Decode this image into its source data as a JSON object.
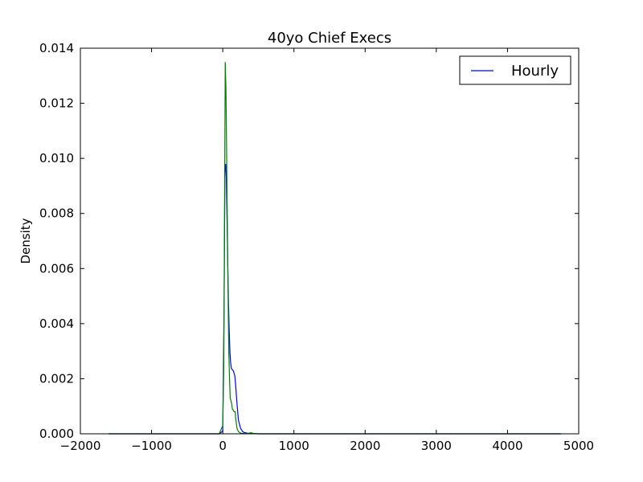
{
  "chart_data": {
    "type": "line",
    "title": "40yo Chief Execs",
    "xlabel": "",
    "ylabel": "Density",
    "xlim": [
      -2000,
      5000
    ],
    "ylim": [
      0,
      0.014
    ],
    "xticks": [
      -2000,
      -1000,
      0,
      1000,
      2000,
      3000,
      4000,
      5000
    ],
    "xtick_labels": [
      "−2000",
      "−1000",
      "0",
      "1000",
      "2000",
      "3000",
      "4000",
      "5000"
    ],
    "yticks": [
      0,
      0.002,
      0.004,
      0.006,
      0.008,
      0.01,
      0.012,
      0.014
    ],
    "ytick_labels": [
      "0.000",
      "0.002",
      "0.004",
      "0.006",
      "0.008",
      "0.010",
      "0.012",
      "0.014"
    ],
    "grid": false,
    "legend": {
      "position": "top-right",
      "entries": [
        {
          "label": "Hourly",
          "color": "#0000ff"
        }
      ]
    },
    "series": [
      {
        "name": "Hourly",
        "color": "#0000ff",
        "x": [
          -1600,
          -200,
          -50,
          0,
          20,
          30,
          40,
          50,
          60,
          70,
          80,
          90,
          100,
          110,
          120,
          130,
          150,
          170,
          180,
          200,
          220,
          250,
          280,
          300,
          350,
          400,
          500,
          1000,
          2000,
          3000,
          4000,
          4750
        ],
        "y": [
          0,
          0,
          0,
          0.0001,
          0.005,
          0.0095,
          0.0098,
          0.0093,
          0.0078,
          0.0062,
          0.0048,
          0.0038,
          0.003,
          0.0026,
          0.00238,
          0.00234,
          0.00228,
          0.0021,
          0.0018,
          0.0011,
          0.0005,
          0.0002,
          8e-05,
          5e-05,
          2e-05,
          1e-05,
          0,
          0,
          0,
          0,
          0,
          0
        ]
      },
      {
        "x": [
          -1600,
          -200,
          -50,
          0,
          15,
          25,
          35,
          45,
          55,
          65,
          75,
          85,
          95,
          105,
          115,
          125,
          135,
          150,
          160,
          175,
          180,
          200,
          220,
          240,
          260,
          300,
          350,
          380,
          400,
          420,
          450,
          500,
          1000,
          2000,
          3000,
          4000,
          4750
        ],
        "color": "#008000",
        "y": [
          0,
          0,
          0,
          0.0003,
          0.0025,
          0.008,
          0.0135,
          0.0125,
          0.01,
          0.0075,
          0.005,
          0.003,
          0.002,
          0.0013,
          0.0012,
          0.0011,
          0.0009,
          0.00085,
          0.0008,
          0.0008,
          0.0006,
          0.0002,
          8e-05,
          4e-05,
          2e-05,
          1e-05,
          1e-05,
          3e-05,
          4e-05,
          2e-05,
          1e-05,
          0,
          0,
          0,
          0,
          0,
          0
        ]
      }
    ]
  }
}
